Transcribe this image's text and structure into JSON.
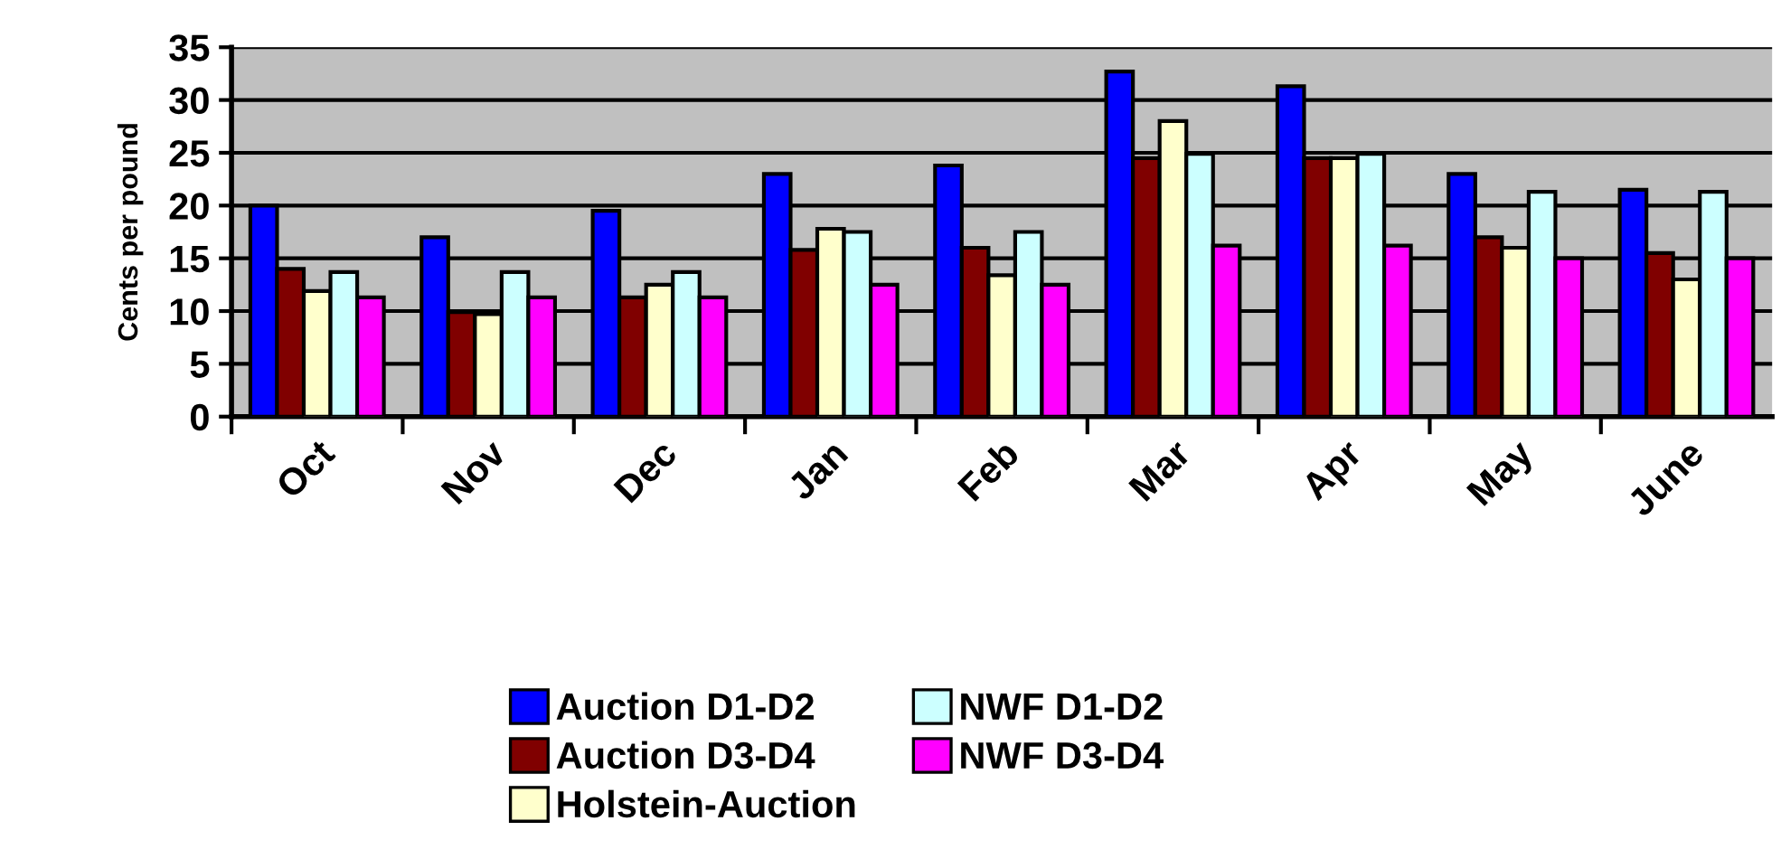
{
  "chart_data": {
    "type": "bar",
    "ylabel": "Cents per pound",
    "categories": [
      "Oct",
      "Nov",
      "Dec",
      "Jan",
      "Feb",
      "Mar",
      "Apr",
      "May",
      "June"
    ],
    "series": [
      {
        "name": "Auction D1-D2",
        "color": "#0000ff",
        "values": [
          20.0,
          17.0,
          19.5,
          23.0,
          23.8,
          32.7,
          31.3,
          23.0,
          21.5
        ]
      },
      {
        "name": "Auction D3-D4",
        "color": "#800000",
        "values": [
          14.0,
          9.9,
          11.3,
          15.8,
          16.0,
          24.5,
          24.5,
          17.0,
          15.5
        ]
      },
      {
        "name": "Holstein-Auction",
        "color": "#ffffcc",
        "values": [
          11.9,
          9.7,
          12.5,
          17.8,
          13.4,
          28.0,
          24.5,
          16.0,
          13.0
        ]
      },
      {
        "name": "NWF D1-D2",
        "color": "#ccffff",
        "values": [
          13.7,
          13.7,
          13.7,
          17.5,
          17.5,
          24.9,
          24.9,
          21.3,
          21.3
        ]
      },
      {
        "name": "NWF D3-D4",
        "color": "#ff00ff",
        "values": [
          11.3,
          11.3,
          11.3,
          12.5,
          12.5,
          16.2,
          16.2,
          15.0,
          15.0
        ]
      }
    ],
    "ylim": [
      0,
      35
    ],
    "yticks": [
      0,
      5,
      10,
      15,
      20,
      25,
      30,
      35
    ],
    "grid": "y",
    "legend": "bottom"
  }
}
